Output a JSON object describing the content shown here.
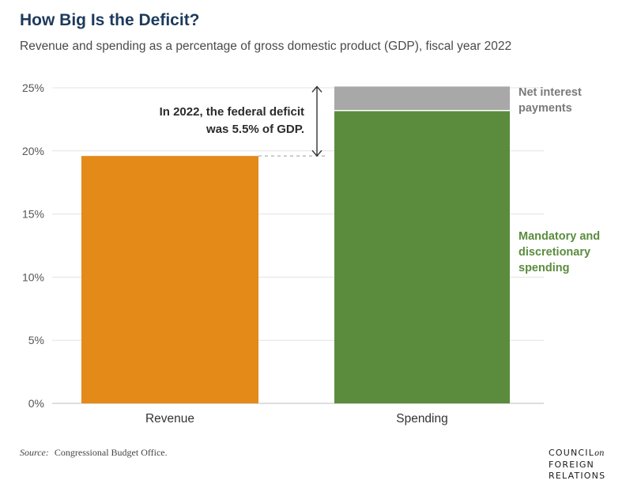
{
  "title": "How Big Is the Deficit?",
  "subtitle": "Revenue and spending as a percentage of gross domestic product (GDP), fiscal year 2022",
  "source": {
    "label": "Source:",
    "text": "Congressional Budget Office."
  },
  "logo": {
    "line1": "COUNCIL",
    "on": "on",
    "line2": "FOREIGN",
    "line3": "RELATIONS"
  },
  "colors": {
    "revenue": "#e38a19",
    "spending": "#5b8c3e",
    "interest": "#a8a8a8",
    "text_dark": "#2b2b2b",
    "green_label": "#5b8c3e",
    "gray_label": "#7a7a7a"
  },
  "chart_data": {
    "type": "bar",
    "stacked": true,
    "categories": [
      "Revenue",
      "Spending"
    ],
    "series": [
      {
        "name": "Revenue",
        "values": [
          19.6,
          null
        ]
      },
      {
        "name": "Mandatory and discretionary spending",
        "values": [
          null,
          23.2
        ]
      },
      {
        "name": "Net interest payments",
        "values": [
          null,
          1.9
        ]
      }
    ],
    "ylim": [
      0,
      25
    ],
    "yticks": [
      0,
      5,
      10,
      15,
      20,
      25
    ],
    "ytick_labels": [
      "0%",
      "5%",
      "10%",
      "15%",
      "20%",
      "25%"
    ],
    "grid": true,
    "annotation": {
      "line1": "In 2022, the federal deficit",
      "line2": "was 5.5% of GDP.",
      "from": 19.6,
      "to": 25.1
    },
    "segment_labels": {
      "interest": [
        "Net interest",
        "payments"
      ],
      "spending": [
        "Mandatory and",
        "discretionary",
        "spending"
      ]
    }
  }
}
